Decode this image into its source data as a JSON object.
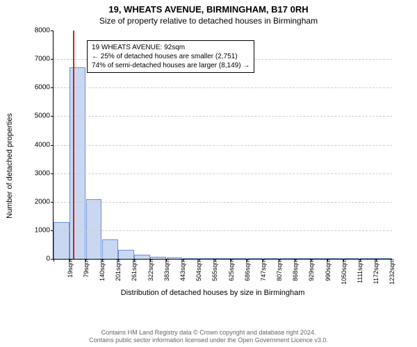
{
  "title": "19, WHEATS AVENUE, BIRMINGHAM, B17 0RH",
  "subtitle": "Size of property relative to detached houses in Birmingham",
  "xlabel": "Distribution of detached houses by size in Birmingham",
  "ylabel": "Number of detached properties",
  "chart": {
    "type": "histogram",
    "ylim_max": 8000,
    "ytick_step": 1000,
    "background_color": "#ffffff",
    "grid_color": "#cccccc",
    "bar_fill": "#c9d8f0",
    "bar_stroke": "#6a8fd8",
    "marker_color": "#d02020",
    "axis_label_fontsize": 11,
    "tick_fontsize": 10,
    "xtick_fontsize": 9,
    "x_categories": [
      "19sqm",
      "79sqm",
      "140sqm",
      "201sqm",
      "261sqm",
      "322sqm",
      "383sqm",
      "443sqm",
      "504sqm",
      "565sqm",
      "625sqm",
      "686sqm",
      "747sqm",
      "807sqm",
      "868sqm",
      "929sqm",
      "990sqm",
      "1050sqm",
      "1111sqm",
      "1172sqm",
      "1232sqm"
    ],
    "values": [
      1300,
      6700,
      2100,
      680,
      310,
      150,
      80,
      50,
      30,
      20,
      10,
      5,
      2,
      1,
      0,
      0,
      0,
      0,
      0,
      0,
      0
    ],
    "marker_bin_index": 1,
    "marker_fraction_in_bin": 0.22
  },
  "annotation": {
    "line1": "19 WHEATS AVENUE: 92sqm",
    "line2": "← 25% of detached houses are smaller (2,751)",
    "line3": "74% of semi-detached houses are larger (8,149) →"
  },
  "footnote_line1": "Contains HM Land Registry data © Crown copyright and database right 2024.",
  "footnote_line2": "Contains public sector information licensed under the Open Government Licence v3.0."
}
